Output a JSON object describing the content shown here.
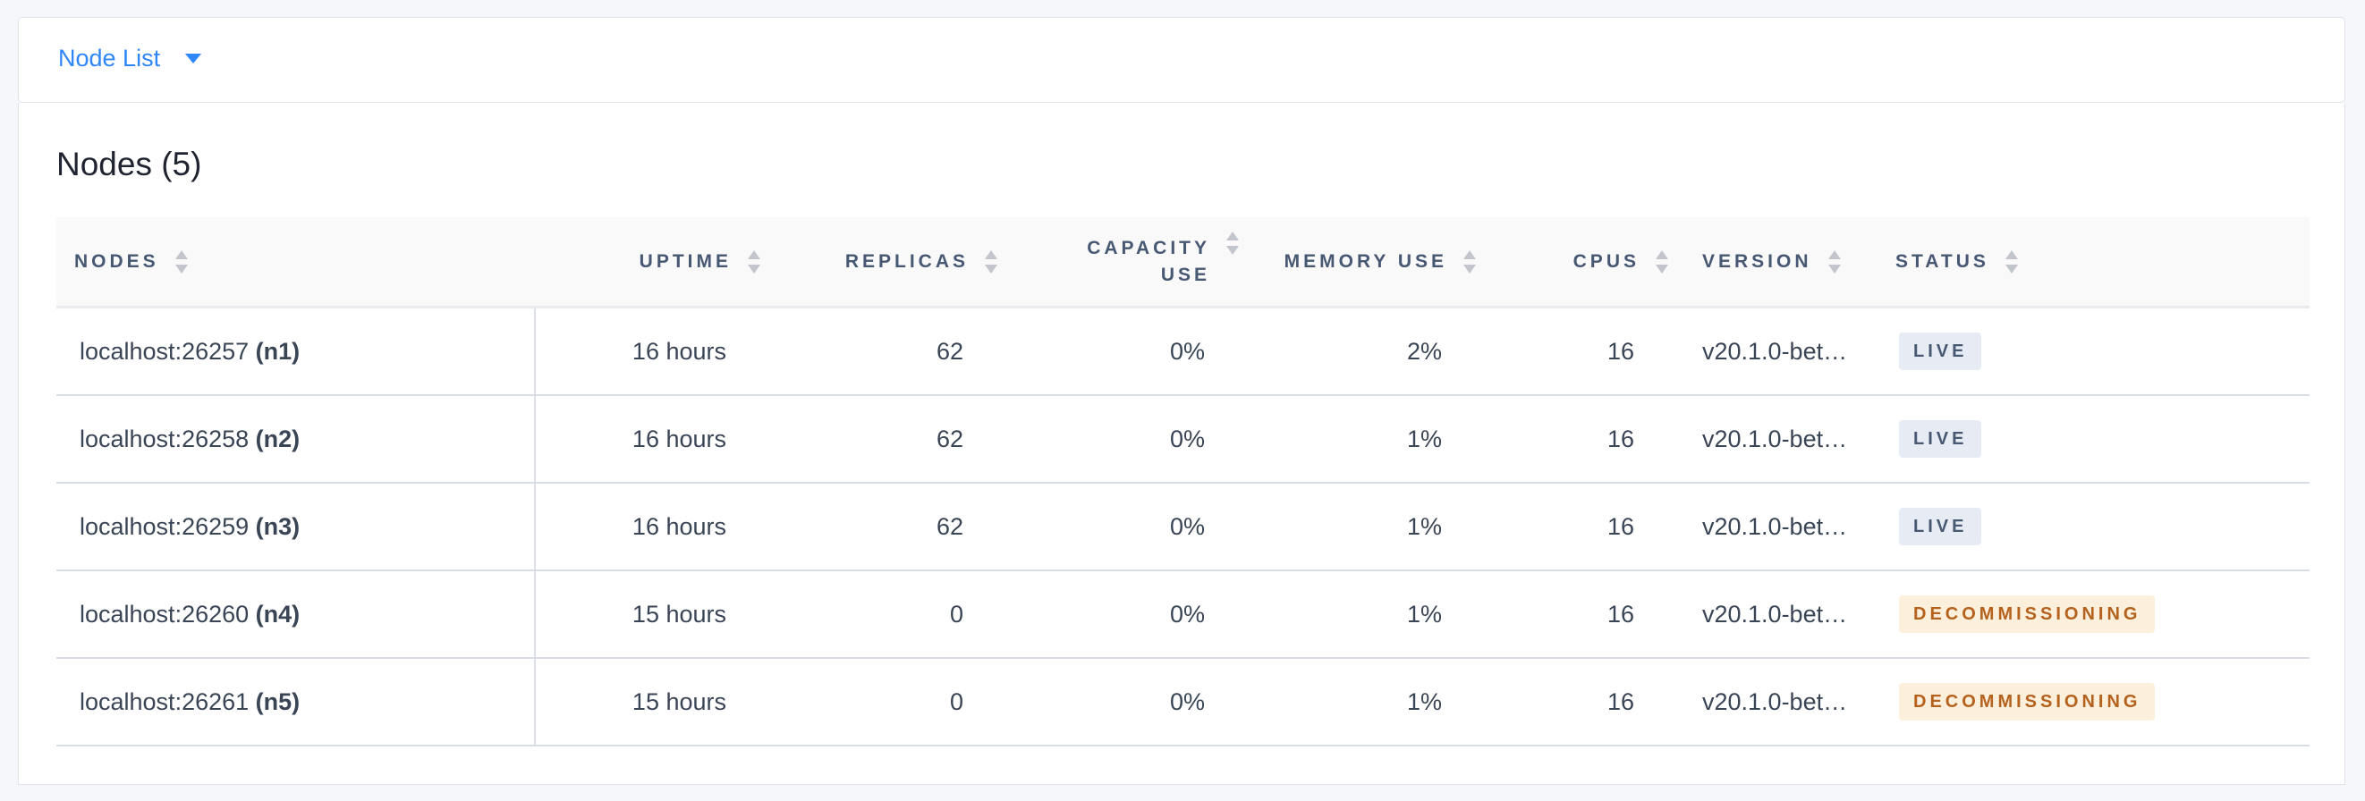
{
  "header": {
    "dropdown_label": "Node List",
    "dropdown_icon": "caret-down-icon"
  },
  "title": "Nodes (5)",
  "columns": [
    "NODES",
    "UPTIME",
    "REPLICAS",
    "CAPACITY",
    "USE",
    "MEMORY USE",
    "CPUS",
    "VERSION",
    "STATUS"
  ],
  "rows": [
    {
      "address": "localhost:26257",
      "id": "(n1)",
      "uptime": "16 hours",
      "replicas": "62",
      "capacity": "0%",
      "memory": "2%",
      "cpus": "16",
      "version": "v20.1.0-bet…",
      "status": "LIVE"
    },
    {
      "address": "localhost:26258",
      "id": "(n2)",
      "uptime": "16 hours",
      "replicas": "62",
      "capacity": "0%",
      "memory": "1%",
      "cpus": "16",
      "version": "v20.1.0-bet…",
      "status": "LIVE"
    },
    {
      "address": "localhost:26259",
      "id": "(n3)",
      "uptime": "16 hours",
      "replicas": "62",
      "capacity": "0%",
      "memory": "1%",
      "cpus": "16",
      "version": "v20.1.0-bet…",
      "status": "LIVE"
    },
    {
      "address": "localhost:26260",
      "id": "(n4)",
      "uptime": "15 hours",
      "replicas": "0",
      "capacity": "0%",
      "memory": "1%",
      "cpus": "16",
      "version": "v20.1.0-bet…",
      "status": "DECOMMISSIONING"
    },
    {
      "address": "localhost:26261",
      "id": "(n5)",
      "uptime": "15 hours",
      "replicas": "0",
      "capacity": "0%",
      "memory": "1%",
      "cpus": "16",
      "version": "v20.1.0-bet…",
      "status": "DECOMMISSIONING"
    }
  ],
  "colors": {
    "accent": "#2f86f6",
    "live_bg": "#e7ebf3",
    "live_text": "#475872",
    "decommissioning_bg": "#fcefdc",
    "decommissioning_text": "#b4621d"
  }
}
